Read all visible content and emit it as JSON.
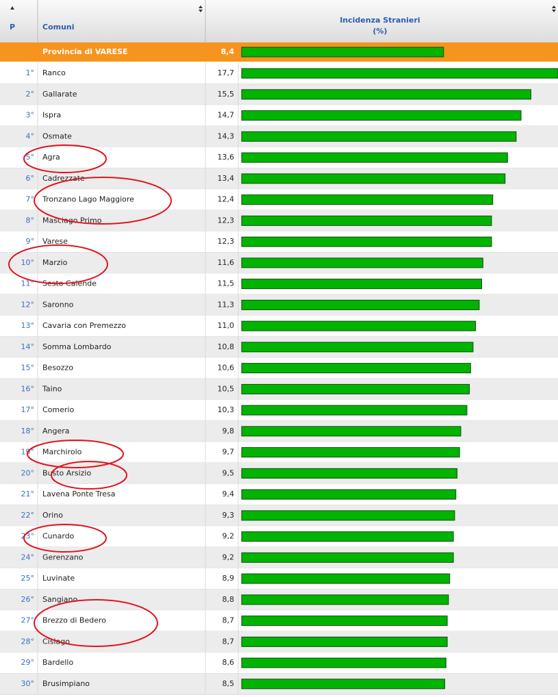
{
  "header": {
    "rank": "P",
    "name": "Comuni",
    "value": "Incidenza Stranieri",
    "unit": "(%)"
  },
  "chart_data": {
    "type": "hbar",
    "total": {
      "name": "Provincia di VARESE",
      "value": 8.4,
      "value_label": "8,4"
    },
    "ranks": [
      "1°",
      "2°",
      "3°",
      "4°",
      "5°",
      "6°",
      "7°",
      "8°",
      "9°",
      "10°",
      "11°",
      "12°",
      "13°",
      "14°",
      "15°",
      "16°",
      "17°",
      "18°",
      "19°",
      "20°",
      "21°",
      "22°",
      "23°",
      "24°",
      "25°",
      "26°",
      "27°",
      "28°",
      "29°",
      "30°"
    ],
    "categories": [
      "Ranco",
      "Gallarate",
      "Ispra",
      "Osmate",
      "Agra",
      "Cadrezzate",
      "Tronzano Lago Maggiore",
      "Masciago Primo",
      "Varese",
      "Marzio",
      "Sesto Calende",
      "Saronno",
      "Cavaria con Premezzo",
      "Somma Lombardo",
      "Besozzo",
      "Taino",
      "Comerio",
      "Angera",
      "Marchirolo",
      "Busto Arsizio",
      "Lavena Ponte Tresa",
      "Orino",
      "Cunardo",
      "Gerenzano",
      "Luvinate",
      "Sangiano",
      "Brezzo di Bedero",
      "Cislago",
      "Bardello",
      "Brusimpiano"
    ],
    "values": [
      17.7,
      15.5,
      14.7,
      14.3,
      13.6,
      13.4,
      12.4,
      12.3,
      12.3,
      11.6,
      11.5,
      11.3,
      11.0,
      10.8,
      10.6,
      10.5,
      10.3,
      9.8,
      9.7,
      9.5,
      9.4,
      9.3,
      9.2,
      9.2,
      8.9,
      8.8,
      8.7,
      8.7,
      8.6,
      8.5
    ],
    "value_labels": [
      "17,7",
      "15,5",
      "14,7",
      "14,3",
      "13,6",
      "13,4",
      "12,4",
      "12,3",
      "12,3",
      "11,6",
      "11,5",
      "11,3",
      "11,0",
      "10,8",
      "10,6",
      "10,5",
      "10,3",
      "9,8",
      "9,7",
      "9,5",
      "9,4",
      "9,3",
      "9,2",
      "9,2",
      "8,9",
      "8,8",
      "8,7",
      "8,7",
      "8,6",
      "8,5"
    ],
    "color": "#00b400",
    "xlim": [
      -8.0,
      17.7
    ]
  }
}
